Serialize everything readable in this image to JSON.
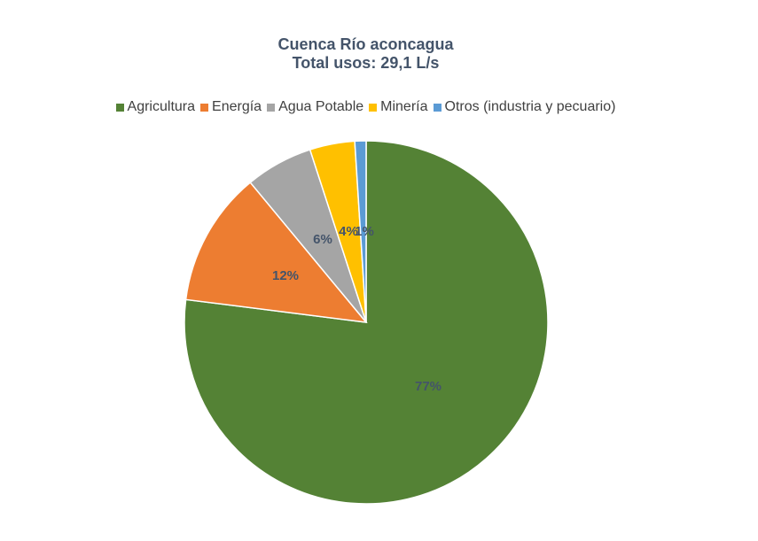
{
  "chart_data": {
    "type": "pie",
    "title": "Cuenca Río aconcagua",
    "subtitle": "Total usos: 29,1 L/s",
    "legend_position": "top",
    "categories": [
      "Agricultura",
      "Energía",
      "Agua Potable",
      "Minería",
      "Otros (industria y pecuario)"
    ],
    "values": [
      77,
      12,
      6,
      4,
      1
    ],
    "data_labels": [
      "77%",
      "12%",
      "6%",
      "4%",
      "1%"
    ],
    "colors": [
      "#548235",
      "#ed7d31",
      "#a5a5a5",
      "#ffc000",
      "#5b9bd5"
    ]
  }
}
